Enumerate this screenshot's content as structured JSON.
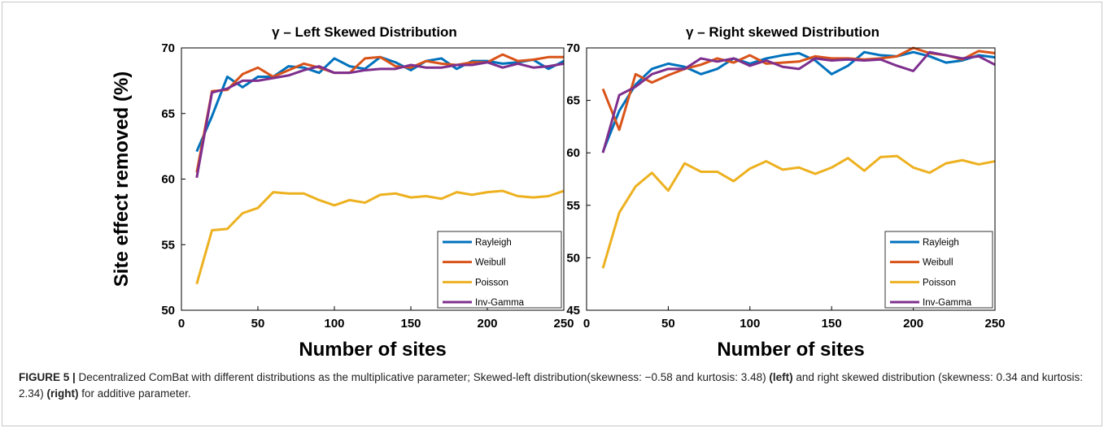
{
  "chart_data": [
    {
      "type": "line",
      "title": "γ – Left Skewed Distribution",
      "ylabel": "Site effect removed (%)",
      "xlabel": "Number of sites",
      "x": [
        10,
        20,
        30,
        40,
        50,
        60,
        70,
        80,
        90,
        100,
        110,
        120,
        130,
        140,
        150,
        160,
        170,
        180,
        190,
        200,
        210,
        220,
        230,
        240,
        250
      ],
      "xlim": [
        0,
        250
      ],
      "xticks": [
        0,
        50,
        100,
        150,
        200,
        250
      ],
      "ylim": [
        50,
        70
      ],
      "yticks": [
        50,
        55,
        60,
        65,
        70
      ],
      "legend": "lower right",
      "series": [
        {
          "name": "Rayleigh",
          "color": "#0072bd",
          "values": [
            62.1,
            64.8,
            67.8,
            67.0,
            67.8,
            67.8,
            68.6,
            68.5,
            68.1,
            69.2,
            68.6,
            68.4,
            69.3,
            68.9,
            68.3,
            69.0,
            69.2,
            68.4,
            69.0,
            69.0,
            68.8,
            68.9,
            69.1,
            68.4,
            69.0
          ]
        },
        {
          "name": "Weibull",
          "color": "#d95319",
          "values": [
            60.5,
            66.7,
            66.8,
            68.0,
            68.5,
            67.8,
            68.3,
            68.8,
            68.5,
            68.1,
            68.1,
            69.2,
            69.3,
            68.6,
            68.5,
            69.0,
            68.8,
            68.7,
            68.9,
            68.9,
            69.5,
            69.0,
            69.1,
            69.3,
            69.3
          ]
        },
        {
          "name": "Poisson",
          "color": "#edb120",
          "values": [
            52.0,
            56.1,
            56.2,
            57.4,
            57.8,
            59.0,
            58.9,
            58.9,
            58.4,
            58.0,
            58.4,
            58.2,
            58.8,
            58.9,
            58.6,
            58.7,
            58.5,
            59.0,
            58.8,
            59.0,
            59.1,
            58.7,
            58.6,
            58.7,
            59.1
          ]
        },
        {
          "name": "Inv-Gamma",
          "color": "#7e2f8e",
          "values": [
            60.1,
            66.6,
            66.9,
            67.5,
            67.5,
            67.7,
            67.9,
            68.3,
            68.6,
            68.1,
            68.1,
            68.3,
            68.4,
            68.4,
            68.7,
            68.5,
            68.5,
            68.7,
            68.7,
            68.9,
            68.5,
            68.8,
            68.5,
            68.6,
            68.8
          ]
        }
      ]
    },
    {
      "type": "line",
      "title": "γ – Right skewed Distribution",
      "xlabel": "Number of sites",
      "x": [
        10,
        20,
        30,
        40,
        50,
        60,
        70,
        80,
        90,
        100,
        110,
        120,
        130,
        140,
        150,
        160,
        170,
        180,
        190,
        200,
        210,
        220,
        230,
        240,
        250
      ],
      "xlim": [
        0,
        250
      ],
      "xticks": [
        0,
        50,
        100,
        150,
        200,
        250
      ],
      "ylim": [
        45,
        70
      ],
      "yticks": [
        45,
        50,
        55,
        60,
        65,
        70
      ],
      "legend": "lower right",
      "series": [
        {
          "name": "Rayleigh",
          "color": "#0072bd",
          "values": [
            60.1,
            64.0,
            66.5,
            68.0,
            68.5,
            68.2,
            67.5,
            68.0,
            69.0,
            68.5,
            69.0,
            69.3,
            69.5,
            68.8,
            67.5,
            68.3,
            69.6,
            69.3,
            69.2,
            69.6,
            69.2,
            68.6,
            68.8,
            69.3,
            69.1
          ]
        },
        {
          "name": "Weibull",
          "color": "#d95319",
          "values": [
            66.1,
            62.2,
            67.5,
            66.7,
            67.4,
            68.0,
            68.4,
            69.0,
            68.6,
            69.3,
            68.5,
            68.6,
            68.7,
            69.2,
            69.0,
            69.0,
            68.9,
            69.0,
            69.2,
            70.0,
            69.5,
            69.3,
            68.9,
            69.7,
            69.5
          ]
        },
        {
          "name": "Poisson",
          "color": "#edb120",
          "values": [
            49.0,
            54.3,
            56.8,
            58.1,
            56.4,
            59.0,
            58.2,
            58.2,
            57.3,
            58.5,
            59.2,
            58.4,
            58.6,
            58.0,
            58.6,
            59.5,
            58.3,
            59.6,
            59.7,
            58.6,
            58.1,
            59.0,
            59.3,
            58.9,
            59.2
          ]
        },
        {
          "name": "Inv-Gamma",
          "color": "#7e2f8e",
          "values": [
            60.0,
            65.5,
            66.3,
            67.5,
            68.0,
            68.0,
            69.0,
            68.7,
            69.0,
            68.3,
            68.8,
            68.2,
            68.0,
            69.0,
            68.8,
            68.9,
            68.8,
            68.9,
            68.3,
            67.8,
            69.6,
            69.3,
            69.0,
            69.2,
            68.4
          ]
        }
      ]
    }
  ],
  "caption": {
    "label": "FIGURE 5 |",
    "text1": " Decentralized ComBat with different distributions as the multiplicative parameter; Skewed-left distribution(skewness: −0.58 and kurtosis: 3.48) ",
    "bold1": "(left)",
    "text2": " and right skewed distribution (skewness: 0.34 and kurtosis: 2.34) ",
    "bold2": "(right)",
    "text3": " for additive parameter."
  }
}
